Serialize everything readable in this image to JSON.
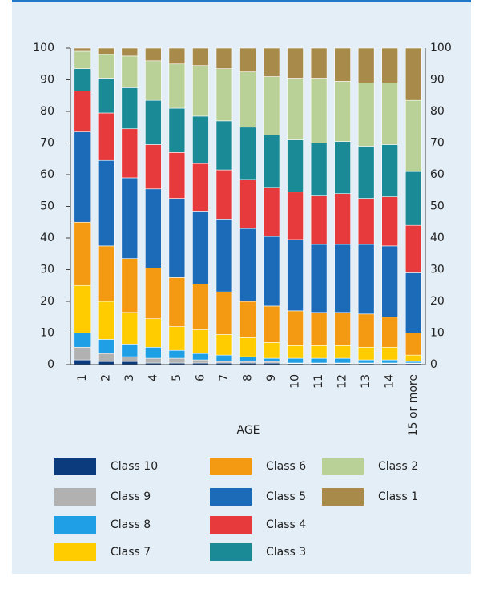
{
  "chart_data": {
    "type": "stacked-bar",
    "x_label": "AGE",
    "categories": [
      "1",
      "2",
      "3",
      "4",
      "5",
      "6",
      "7",
      "8",
      "9",
      "10",
      "11",
      "12",
      "13",
      "14",
      "15 or more"
    ],
    "ylim": [
      0,
      100
    ],
    "yticks": [
      0,
      10,
      20,
      30,
      40,
      50,
      60,
      70,
      80,
      90,
      100
    ],
    "series": [
      {
        "name": "Class 10",
        "color": "#0b3b7c",
        "values": [
          1.5,
          1,
          1,
          0.5,
          0.5,
          0.5,
          0.5,
          0.5,
          0.5,
          0.3,
          0.3,
          0.3,
          0.3,
          0.3,
          0.3
        ]
      },
      {
        "name": "Class 9",
        "color": "#b1b1b1",
        "values": [
          4,
          2.5,
          1.5,
          1.5,
          1.5,
          1,
          0.5,
          0.5,
          0.5,
          0.2,
          0.2,
          0.2,
          0.2,
          0.2,
          0.2
        ]
      },
      {
        "name": "Class 8",
        "color": "#1fa0e6",
        "values": [
          4.5,
          4.5,
          4,
          3.5,
          2.5,
          2,
          2,
          1.5,
          1,
          1.5,
          1.5,
          1.5,
          1,
          1,
          0.5
        ]
      },
      {
        "name": "Class 7",
        "color": "#ffcc00",
        "values": [
          15,
          12,
          10,
          9,
          7.5,
          7.5,
          6.5,
          6,
          5,
          4,
          4,
          4,
          4,
          4,
          2
        ]
      },
      {
        "name": "Class 6",
        "color": "#f39a12",
        "values": [
          20,
          17.5,
          17,
          16,
          15.5,
          14.5,
          13.5,
          11.5,
          11.5,
          11,
          10.5,
          10.5,
          10.5,
          9.5,
          7
        ]
      },
      {
        "name": "Class 5",
        "color": "#1b6bb8",
        "values": [
          28.5,
          27,
          25.5,
          25,
          25,
          23,
          23,
          23,
          22,
          22.5,
          21.5,
          21.5,
          22,
          22.5,
          19
        ]
      },
      {
        "name": "Class 4",
        "color": "#e63a3c",
        "values": [
          13,
          15,
          15.5,
          14,
          14.5,
          15,
          15.5,
          15.5,
          15.5,
          15,
          15.5,
          16,
          14.5,
          15.5,
          15
        ]
      },
      {
        "name": "Class 3",
        "color": "#1a8a96",
        "values": [
          7,
          11,
          13,
          14,
          14,
          15,
          15.5,
          16.5,
          16.5,
          16.5,
          16.5,
          16.5,
          16.5,
          16.5,
          17
        ]
      },
      {
        "name": "Class 2",
        "color": "#b9d096",
        "values": [
          5.5,
          7.5,
          10,
          12.5,
          14,
          16,
          16.5,
          17.5,
          18.5,
          19.5,
          20.5,
          19,
          20,
          19.5,
          22.5
        ]
      },
      {
        "name": "Class 1",
        "color": "#a88a4b",
        "values": [
          1,
          2,
          2.5,
          4,
          5,
          5.5,
          6.5,
          7.5,
          9,
          9.5,
          9.5,
          10.5,
          11,
          11,
          16.5
        ]
      }
    ]
  }
}
